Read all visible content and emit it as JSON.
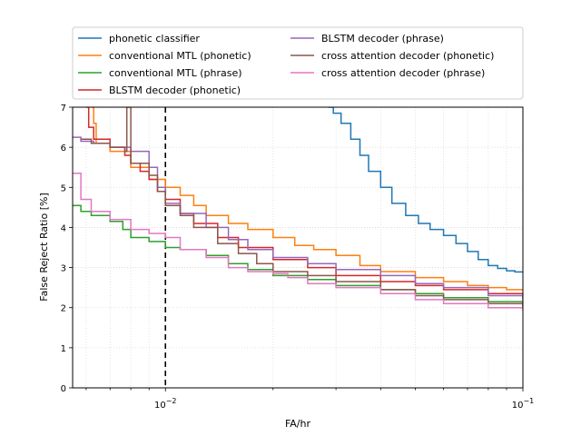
{
  "chart_data": {
    "type": "line",
    "title": "",
    "xlabel": "FA/hr",
    "ylabel": "False Reject Ratio [%]",
    "xscale": "log",
    "xlim": [
      0.0055,
      0.1
    ],
    "ylim": [
      0,
      7
    ],
    "grid": "dotted",
    "legend_placement": "top (above plot), two columns",
    "xticks": [
      {
        "value": 0.01,
        "base": "10",
        "exp": "−2"
      },
      {
        "value": 0.1,
        "base": "10",
        "exp": "−1"
      }
    ],
    "yticks": [
      0,
      1,
      2,
      3,
      4,
      5,
      6,
      7
    ],
    "reference_line": {
      "x": 0.01,
      "style": "dashed",
      "color": "#000000"
    },
    "series": [
      {
        "name": "phonetic classifier",
        "color": "#1f77b4",
        "x": [
          0.0285,
          0.0295,
          0.031,
          0.033,
          0.035,
          0.037,
          0.04,
          0.043,
          0.047,
          0.051,
          0.055,
          0.06,
          0.065,
          0.07,
          0.075,
          0.08,
          0.085,
          0.09,
          0.095,
          0.1
        ],
        "y": [
          7.0,
          6.85,
          6.6,
          6.2,
          5.8,
          5.4,
          5.0,
          4.6,
          4.3,
          4.1,
          3.95,
          3.8,
          3.6,
          3.4,
          3.2,
          3.05,
          2.98,
          2.92,
          2.89,
          2.88
        ]
      },
      {
        "name": "conventional MTL (phonetic)",
        "color": "#ff7f0e",
        "x": [
          0.0062,
          0.0063,
          0.0064,
          0.007,
          0.008,
          0.009,
          0.01,
          0.011,
          0.012,
          0.013,
          0.015,
          0.017,
          0.02,
          0.023,
          0.026,
          0.03,
          0.035,
          0.04,
          0.05,
          0.06,
          0.07,
          0.08,
          0.09,
          0.1
        ],
        "y": [
          7.0,
          6.6,
          6.1,
          5.9,
          5.5,
          5.2,
          5.0,
          4.8,
          4.55,
          4.3,
          4.1,
          3.95,
          3.75,
          3.55,
          3.45,
          3.3,
          3.05,
          2.9,
          2.75,
          2.65,
          2.55,
          2.5,
          2.45,
          2.42
        ]
      },
      {
        "name": "conventional MTL (phrase)",
        "color": "#2ca02c",
        "x": [
          0.0055,
          0.0058,
          0.0062,
          0.007,
          0.0076,
          0.008,
          0.009,
          0.01,
          0.011,
          0.013,
          0.015,
          0.017,
          0.02,
          0.025,
          0.03,
          0.04,
          0.05,
          0.06,
          0.08,
          0.1
        ],
        "y": [
          4.55,
          4.4,
          4.3,
          4.15,
          3.95,
          3.75,
          3.65,
          3.5,
          3.45,
          3.3,
          3.1,
          2.95,
          2.8,
          2.7,
          2.55,
          2.45,
          2.35,
          2.25,
          2.15,
          2.0
        ]
      },
      {
        "name": "BLSTM decoder (phonetic)",
        "color": "#d62728",
        "x": [
          0.006,
          0.0061,
          0.0063,
          0.007,
          0.0077,
          0.008,
          0.0085,
          0.009,
          0.0095,
          0.01,
          0.011,
          0.012,
          0.014,
          0.016,
          0.02,
          0.025,
          0.03,
          0.04,
          0.05,
          0.06,
          0.08,
          0.1
        ],
        "y": [
          7.0,
          6.5,
          6.2,
          6.0,
          5.8,
          5.6,
          5.4,
          5.2,
          4.9,
          4.7,
          4.35,
          4.1,
          3.75,
          3.5,
          3.2,
          3.0,
          2.8,
          2.65,
          2.55,
          2.45,
          2.35,
          2.22
        ]
      },
      {
        "name": "BLSTM decoder (phrase)",
        "color": "#9467bd",
        "x": [
          0.0055,
          0.0058,
          0.0063,
          0.007,
          0.008,
          0.009,
          0.0095,
          0.01,
          0.011,
          0.013,
          0.015,
          0.017,
          0.02,
          0.025,
          0.03,
          0.04,
          0.05,
          0.06,
          0.08,
          0.1
        ],
        "y": [
          6.25,
          6.15,
          6.1,
          6.0,
          5.9,
          5.5,
          5.0,
          4.6,
          4.35,
          4.0,
          3.7,
          3.45,
          3.25,
          3.1,
          2.95,
          2.8,
          2.6,
          2.5,
          2.3,
          2.1
        ]
      },
      {
        "name": "cross attention decoder (phonetic)",
        "color": "#8c564b",
        "x": [
          0.0058,
          0.0062,
          0.007,
          0.0077,
          0.0078,
          0.008,
          0.009,
          0.0095,
          0.01,
          0.011,
          0.012,
          0.014,
          0.016,
          0.018,
          0.02,
          0.025,
          0.03,
          0.04,
          0.05,
          0.06,
          0.08,
          0.1
        ],
        "y": [
          6.2,
          6.1,
          6.0,
          5.9,
          7.0,
          5.6,
          5.3,
          4.9,
          4.55,
          4.3,
          4.0,
          3.6,
          3.35,
          3.1,
          2.9,
          2.8,
          2.65,
          2.45,
          2.3,
          2.2,
          2.1,
          1.97
        ]
      },
      {
        "name": "cross attention decoder (phrase)",
        "color": "#e377c2",
        "x": [
          0.0055,
          0.0058,
          0.0062,
          0.007,
          0.008,
          0.009,
          0.01,
          0.011,
          0.013,
          0.015,
          0.017,
          0.02,
          0.022,
          0.025,
          0.03,
          0.04,
          0.05,
          0.06,
          0.08,
          0.1
        ],
        "y": [
          5.35,
          4.7,
          4.4,
          4.2,
          3.95,
          3.85,
          3.75,
          3.45,
          3.25,
          3.0,
          2.9,
          2.85,
          2.75,
          2.6,
          2.5,
          2.35,
          2.2,
          2.1,
          2.0,
          1.92
        ]
      }
    ]
  }
}
